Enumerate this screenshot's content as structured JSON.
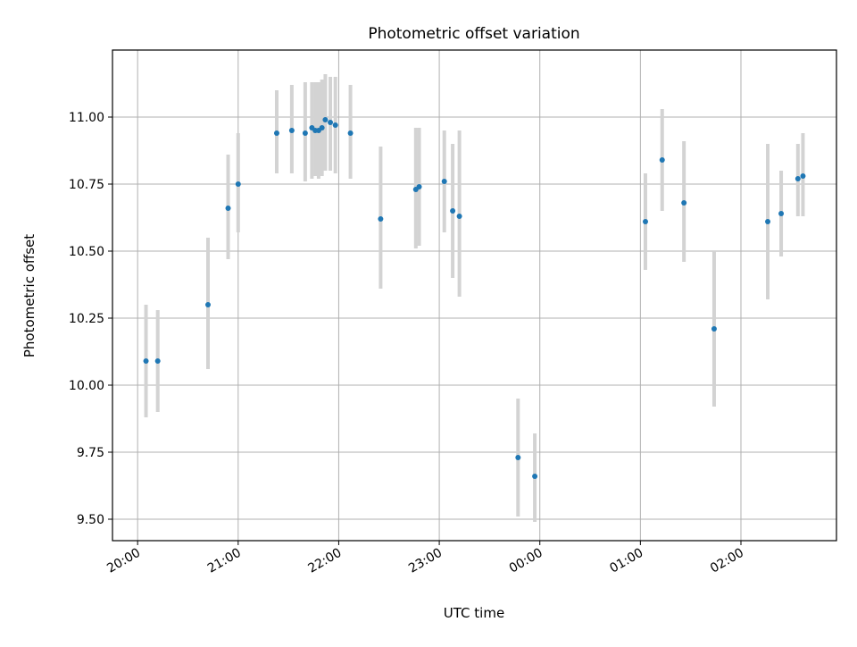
{
  "chart_data": {
    "type": "scatter",
    "title": "Photometric offset variation",
    "xlabel": "UTC time",
    "ylabel": "Photometric offset",
    "xlim": [
      "19:45",
      "02:57"
    ],
    "ylim": [
      9.42,
      11.25
    ],
    "grid": true,
    "x_ticks": [
      "20:00",
      "21:00",
      "22:00",
      "23:00",
      "00:00",
      "01:00",
      "02:00"
    ],
    "y_ticks": [
      "9.50",
      "9.75",
      "10.00",
      "10.25",
      "10.50",
      "10.75",
      "11.00"
    ],
    "series": [
      {
        "marker_color": "#1f77b4",
        "errorbar_color": "#d3d3d3",
        "points": [
          {
            "time": "20:05",
            "y": 10.09,
            "lo": 9.88,
            "hi": 10.3
          },
          {
            "time": "20:12",
            "y": 10.09,
            "lo": 9.9,
            "hi": 10.28
          },
          {
            "time": "20:42",
            "y": 10.3,
            "lo": 10.06,
            "hi": 10.55
          },
          {
            "time": "20:54",
            "y": 10.66,
            "lo": 10.47,
            "hi": 10.86
          },
          {
            "time": "21:00",
            "y": 10.75,
            "lo": 10.57,
            "hi": 10.94
          },
          {
            "time": "21:23",
            "y": 10.94,
            "lo": 10.79,
            "hi": 11.1
          },
          {
            "time": "21:32",
            "y": 10.95,
            "lo": 10.79,
            "hi": 11.12
          },
          {
            "time": "21:40",
            "y": 10.94,
            "lo": 10.76,
            "hi": 11.13
          },
          {
            "time": "21:44",
            "y": 10.96,
            "lo": 10.77,
            "hi": 11.13
          },
          {
            "time": "21:46",
            "y": 10.95,
            "lo": 10.78,
            "hi": 11.13
          },
          {
            "time": "21:48",
            "y": 10.95,
            "lo": 10.77,
            "hi": 11.13
          },
          {
            "time": "21:50",
            "y": 10.96,
            "lo": 10.78,
            "hi": 11.14
          },
          {
            "time": "21:52",
            "y": 10.99,
            "lo": 10.8,
            "hi": 11.16
          },
          {
            "time": "21:55",
            "y": 10.98,
            "lo": 10.8,
            "hi": 11.15
          },
          {
            "time": "21:58",
            "y": 10.97,
            "lo": 10.79,
            "hi": 11.15
          },
          {
            "time": "22:07",
            "y": 10.94,
            "lo": 10.77,
            "hi": 11.12
          },
          {
            "time": "22:25",
            "y": 10.62,
            "lo": 10.36,
            "hi": 10.89
          },
          {
            "time": "22:46",
            "y": 10.73,
            "lo": 10.51,
            "hi": 10.96
          },
          {
            "time": "22:48",
            "y": 10.74,
            "lo": 10.52,
            "hi": 10.96
          },
          {
            "time": "23:03",
            "y": 10.76,
            "lo": 10.57,
            "hi": 10.95
          },
          {
            "time": "23:08",
            "y": 10.65,
            "lo": 10.4,
            "hi": 10.9
          },
          {
            "time": "23:12",
            "y": 10.63,
            "lo": 10.33,
            "hi": 10.95
          },
          {
            "time": "23:47",
            "y": 9.73,
            "lo": 9.51,
            "hi": 9.95
          },
          {
            "time": "23:57",
            "y": 9.66,
            "lo": 9.49,
            "hi": 9.82
          },
          {
            "time": "01:03",
            "y": 10.61,
            "lo": 10.43,
            "hi": 10.79
          },
          {
            "time": "01:13",
            "y": 10.84,
            "lo": 10.65,
            "hi": 11.03
          },
          {
            "time": "01:26",
            "y": 10.68,
            "lo": 10.46,
            "hi": 10.91
          },
          {
            "time": "01:44",
            "y": 10.21,
            "lo": 9.92,
            "hi": 10.5
          },
          {
            "time": "02:16",
            "y": 10.61,
            "lo": 10.32,
            "hi": 10.9
          },
          {
            "time": "02:24",
            "y": 10.64,
            "lo": 10.48,
            "hi": 10.8
          },
          {
            "time": "02:34",
            "y": 10.77,
            "lo": 10.63,
            "hi": 10.9
          },
          {
            "time": "02:37",
            "y": 10.78,
            "lo": 10.63,
            "hi": 10.94
          }
        ]
      }
    ]
  }
}
